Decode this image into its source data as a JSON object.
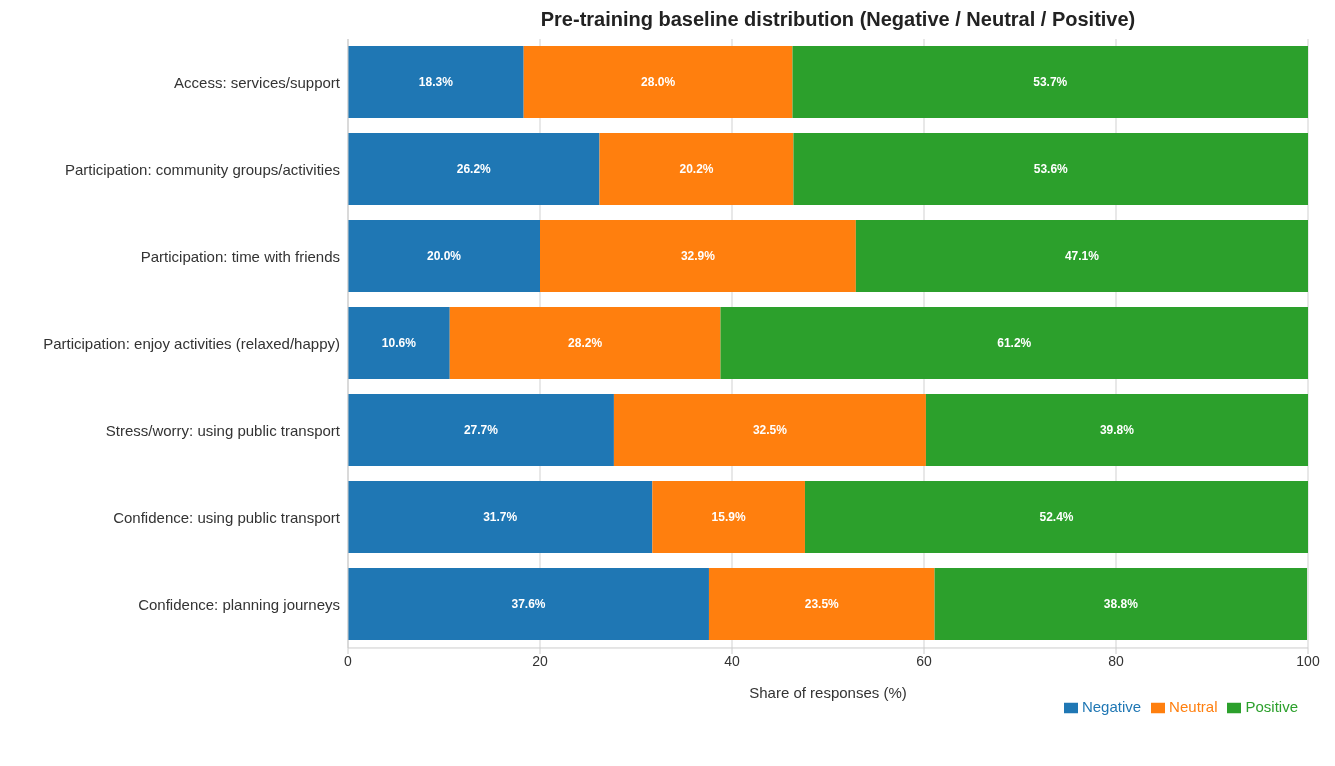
{
  "chart_data": {
    "type": "bar",
    "orientation": "horizontal",
    "stacked": true,
    "title": "Pre-training baseline distribution (Negative / Neutral / Positive)",
    "xlabel": "Share of responses (%)",
    "categories": [
      "Access: services/support",
      "Participation: community groups/activities",
      "Participation: time with friends",
      "Participation: enjoy activities (relaxed/happy)",
      "Stress/worry: using public transport",
      "Confidence: using public transport",
      "Confidence: planning journeys"
    ],
    "series": [
      {
        "name": "Negative",
        "color": "#1f77b4",
        "values": [
          18.3,
          26.2,
          20.0,
          10.6,
          27.7,
          31.7,
          37.6
        ],
        "value_labels": [
          "18.3%",
          "26.2%",
          "20.0%",
          "10.6%",
          "27.7%",
          "31.7%",
          "37.6%"
        ]
      },
      {
        "name": "Neutral",
        "color": "#ff7f0e",
        "values": [
          28.0,
          20.2,
          32.9,
          28.2,
          32.5,
          15.9,
          23.5
        ],
        "value_labels": [
          "28.0%",
          "20.2%",
          "32.9%",
          "28.2%",
          "32.5%",
          "15.9%",
          "23.5%"
        ]
      },
      {
        "name": "Positive",
        "color": "#2ca02c",
        "values": [
          53.7,
          53.6,
          47.1,
          61.2,
          39.8,
          52.4,
          38.8
        ],
        "value_labels": [
          "53.7%",
          "53.6%",
          "47.1%",
          "61.2%",
          "39.8%",
          "52.4%",
          "38.8%"
        ]
      }
    ],
    "xlim": [
      0,
      100
    ],
    "xticks": [
      0,
      20,
      40,
      60,
      80,
      100
    ],
    "grid": "x",
    "legend": "bottom right"
  }
}
